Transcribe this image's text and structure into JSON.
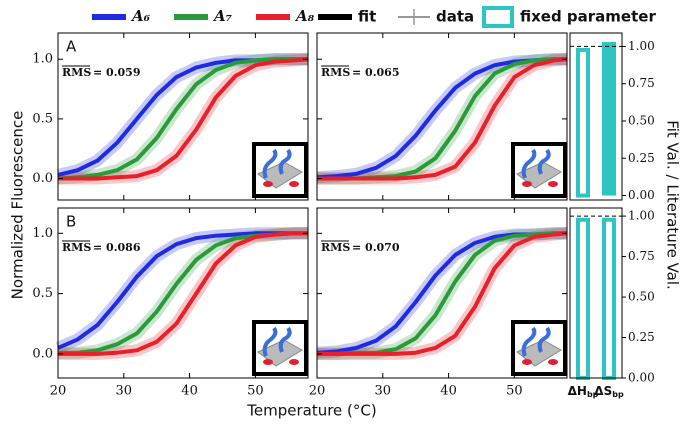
{
  "figure": {
    "xlabel": "Temperature (°C)",
    "ylabel": "Normalized Fluorescence",
    "y2label": "Fit Val. / Literature Val.",
    "legend": {
      "fit": "fit",
      "data": "data",
      "fixed": "fixed parameter"
    }
  },
  "chart_data": [
    {
      "type": "line",
      "panel_label": "A",
      "annotation": {
        "overlined": "RMS",
        "text": "= 0.059"
      },
      "x": [
        20,
        23,
        26,
        29,
        32,
        35,
        38,
        41,
        44,
        47,
        50,
        53,
        56,
        58
      ],
      "xlim": [
        20,
        58
      ],
      "xticks": [
        20,
        30,
        40,
        50
      ],
      "xticklabels": false,
      "ylim": [
        -0.18,
        1.22
      ],
      "yticks": [
        {
          "value": 0,
          "label": "0.0"
        },
        0.5,
        {
          "value": 1,
          "label": "1.0"
        }
      ],
      "yticklabels": true,
      "series": [
        {
          "name": "A₆",
          "color": "#1f2be0",
          "values": [
            0.03,
            0.07,
            0.15,
            0.3,
            0.5,
            0.7,
            0.85,
            0.93,
            0.97,
            0.99,
            0.99,
            1.0,
            1.0,
            1.0
          ]
        },
        {
          "name": "A₇",
          "color": "#2a9a3a",
          "values": [
            0,
            0.01,
            0.03,
            0.07,
            0.16,
            0.34,
            0.58,
            0.79,
            0.91,
            0.97,
            0.99,
            1.0,
            1.0,
            1.0
          ]
        },
        {
          "name": "A₈",
          "color": "#e8202a",
          "values": [
            0,
            0,
            0,
            0.01,
            0.02,
            0.07,
            0.19,
            0.41,
            0.68,
            0.86,
            0.95,
            0.98,
            0.99,
            1.0
          ]
        }
      ]
    },
    {
      "type": "line",
      "annotation": {
        "overlined": "RMS",
        "text": "= 0.065"
      },
      "x": [
        20,
        23,
        26,
        29,
        32,
        35,
        38,
        41,
        44,
        47,
        50,
        53,
        56,
        58
      ],
      "xlim": [
        20,
        58
      ],
      "xticks": [
        20,
        30,
        40,
        50
      ],
      "xticklabels": false,
      "ylim": [
        -0.18,
        1.22
      ],
      "yticks": [
        0,
        0.5,
        1
      ],
      "yticklabels": false,
      "series": [
        {
          "name": "A₆",
          "color": "#1f2be0",
          "values": [
            0.01,
            0.02,
            0.04,
            0.09,
            0.19,
            0.36,
            0.57,
            0.76,
            0.88,
            0.95,
            0.98,
            0.99,
            1.0,
            1.0
          ]
        },
        {
          "name": "A₇",
          "color": "#2a9a3a",
          "values": [
            0,
            0,
            0,
            0.01,
            0.02,
            0.06,
            0.17,
            0.4,
            0.69,
            0.88,
            0.96,
            0.99,
            1.0,
            1.0
          ]
        },
        {
          "name": "A₈",
          "color": "#e8202a",
          "values": [
            0,
            0,
            0,
            0,
            0,
            0.01,
            0.03,
            0.1,
            0.3,
            0.61,
            0.85,
            0.95,
            0.99,
            1.0
          ]
        }
      ]
    },
    {
      "type": "line",
      "panel_label": "B",
      "annotation": {
        "overlined": "RMS",
        "text": "= 0.086"
      },
      "x": [
        20,
        23,
        26,
        29,
        32,
        35,
        38,
        41,
        44,
        47,
        50,
        53,
        56,
        58
      ],
      "xlim": [
        20,
        58
      ],
      "xticks": [
        20,
        30,
        40,
        50
      ],
      "xticklabels": true,
      "ylim": [
        -0.2,
        1.21
      ],
      "yticks": [
        {
          "value": 0,
          "label": "0.0"
        },
        0.5,
        {
          "value": 1,
          "label": "1.0"
        }
      ],
      "yticklabels": true,
      "series": [
        {
          "name": "A₆",
          "color": "#1f2be0",
          "values": [
            0.05,
            0.12,
            0.24,
            0.43,
            0.64,
            0.81,
            0.91,
            0.96,
            0.98,
            0.99,
            1.0,
            1.0,
            1.0,
            1.0
          ]
        },
        {
          "name": "A₇",
          "color": "#2a9a3a",
          "values": [
            0.01,
            0.01,
            0.03,
            0.08,
            0.17,
            0.35,
            0.58,
            0.78,
            0.9,
            0.96,
            0.98,
            0.99,
            1.0,
            1.0
          ]
        },
        {
          "name": "A₈",
          "color": "#e8202a",
          "values": [
            0,
            0,
            0,
            0.01,
            0.03,
            0.1,
            0.25,
            0.5,
            0.75,
            0.9,
            0.97,
            0.99,
            1.0,
            1.0
          ]
        }
      ]
    },
    {
      "type": "line",
      "annotation": {
        "overlined": "RMS",
        "text": "= 0.070"
      },
      "x": [
        20,
        23,
        26,
        29,
        32,
        35,
        38,
        41,
        44,
        47,
        50,
        53,
        56,
        58
      ],
      "xlim": [
        20,
        58
      ],
      "xticks": [
        20,
        30,
        40,
        50
      ],
      "xticklabels": true,
      "ylim": [
        -0.2,
        1.21
      ],
      "yticks": [
        0,
        0.5,
        1
      ],
      "yticklabels": false,
      "series": [
        {
          "name": "A₆",
          "color": "#1f2be0",
          "values": [
            0.01,
            0.02,
            0.05,
            0.11,
            0.23,
            0.43,
            0.65,
            0.82,
            0.92,
            0.97,
            0.99,
            0.99,
            1.0,
            1.0
          ]
        },
        {
          "name": "A₇",
          "color": "#2a9a3a",
          "values": [
            0,
            0,
            0.01,
            0.01,
            0.04,
            0.13,
            0.32,
            0.6,
            0.82,
            0.94,
            0.98,
            0.99,
            1.0,
            1.0
          ]
        },
        {
          "name": "A₈",
          "color": "#e8202a",
          "values": [
            0,
            0,
            0,
            0,
            0,
            0.01,
            0.05,
            0.15,
            0.39,
            0.71,
            0.9,
            0.97,
            0.99,
            1.0
          ]
        }
      ]
    },
    {
      "type": "bar",
      "categories": [
        [
          "ΔH",
          "bp"
        ],
        [
          "ΔS",
          "bp"
        ]
      ],
      "values": [
        0.99,
        1.03
      ],
      "fixed": [
        true,
        false
      ],
      "color": "#2ec4c4",
      "reference_line": 1,
      "ylim": [
        -0.03,
        1.09
      ],
      "yticks": [
        {
          "value": 0,
          "label": "0.00"
        },
        {
          "value": 0.25,
          "label": "0.25"
        },
        {
          "value": 0.5,
          "label": "0.50"
        },
        {
          "value": 0.75,
          "label": "0.75"
        },
        {
          "value": 1,
          "label": "1.00"
        }
      ],
      "categorylabels": false
    },
    {
      "type": "bar",
      "categories": [
        [
          "ΔH",
          "bp"
        ],
        [
          "ΔS",
          "bp"
        ]
      ],
      "values": [
        0.99,
        0.99
      ],
      "fixed": [
        true,
        true
      ],
      "color": "#2ec4c4",
      "reference_line": 1,
      "ylim": [
        0,
        1.05
      ],
      "yticks": [
        {
          "value": 0,
          "label": "0.00"
        },
        {
          "value": 0.25,
          "label": "0.25"
        },
        {
          "value": 0.5,
          "label": "0.50"
        },
        {
          "value": 0.75,
          "label": "0.75"
        },
        {
          "value": 1,
          "label": "1.00"
        }
      ],
      "categorylabels": true
    }
  ]
}
